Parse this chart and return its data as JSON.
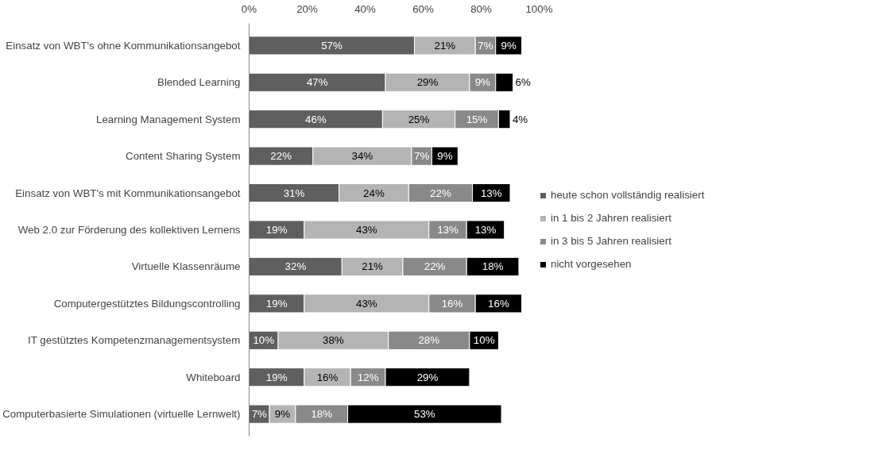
{
  "chart_data": {
    "type": "bar",
    "orientation": "horizontal",
    "stacked": true,
    "legend": "right",
    "grid": false,
    "categories": [
      "Einsatz von WBT's ohne Kommunikationsangebot",
      "Blended Learning",
      "Learning Management System",
      "Content Sharing System",
      "Einsatz von WBT's mit Kommunikationsangebot",
      "Web 2.0 zur Förderung des kollektiven Lernens",
      "Virtuelle Klassenräume",
      "Computergestütztes Bildungscontrolling",
      "IT gestütztes Kompetenzmanagementsystem",
      "Whiteboard",
      "Computerbasierte Simulationen (virtuelle Lernwelt)"
    ],
    "xlim": [
      0,
      100
    ],
    "xticks": [
      {
        "value": 0,
        "label": "0%"
      },
      {
        "value": 20,
        "label": "20%"
      },
      {
        "value": 40,
        "label": "40%"
      },
      {
        "value": 60,
        "label": "60%"
      },
      {
        "value": 80,
        "label": "80%"
      },
      {
        "value": 100,
        "label": "100%"
      }
    ],
    "series": [
      {
        "name": "heute schon vollständig realisiert",
        "color": "#5f5f5f",
        "values": [
          57,
          47,
          46,
          22,
          31,
          19,
          32,
          19,
          10,
          19,
          7
        ],
        "value_labels": [
          "57%",
          "47%",
          "46%",
          "22%",
          "31%",
          "19%",
          "32%",
          "19%",
          "10%",
          "19%",
          "7%"
        ]
      },
      {
        "name": "in 1 bis 2 Jahren realisiert",
        "color": "#b4b4b4",
        "values": [
          21,
          29,
          25,
          34,
          24,
          43,
          21,
          43,
          38,
          16,
          9
        ],
        "value_labels": [
          "21%",
          "29%",
          "25%",
          "34%",
          "24%",
          "43%",
          "21%",
          "43%",
          "38%",
          "16%",
          "9%"
        ]
      },
      {
        "name": "in 3 bis 5 Jahren realisiert",
        "color": "#898989",
        "values": [
          7,
          9,
          15,
          7,
          22,
          13,
          22,
          16,
          28,
          12,
          18
        ],
        "value_labels": [
          "7%",
          "9%",
          "15%",
          "7%",
          "22%",
          "13%",
          "22%",
          "16%",
          "28%",
          "12%",
          "18%"
        ]
      },
      {
        "name": "nicht vorgesehen",
        "color": "#000000",
        "values": [
          9,
          6,
          4,
          9,
          13,
          13,
          18,
          16,
          10,
          29,
          53
        ],
        "value_labels": [
          "9%",
          "6%",
          "4%",
          "9%",
          "13%",
          "13%",
          "18%",
          "16%",
          "10%",
          "29%",
          "53%"
        ]
      }
    ]
  }
}
